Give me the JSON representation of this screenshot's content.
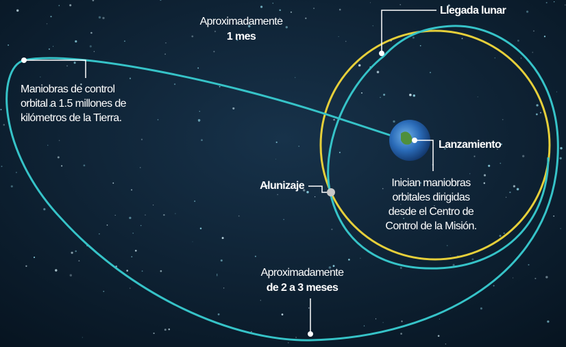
{
  "labels": {
    "one_month": {
      "line1": "Aproximadamente",
      "line2": "1 mes"
    },
    "arrival": "Llegada lunar",
    "maneuvers": [
      "Maniobras de control",
      "orbital a 1.5 millones de",
      "kilómetros de la Tierra."
    ],
    "launch": "Lanzamiento",
    "landing": "Alunizaje",
    "mission_control": [
      "Inician maniobras",
      "orbitales dirigidas",
      "desde el Centro de",
      "Control de la Misión."
    ],
    "two_three_months": {
      "line1": "Aproximadamente",
      "line2": "de 2 a 3 meses"
    }
  }
}
